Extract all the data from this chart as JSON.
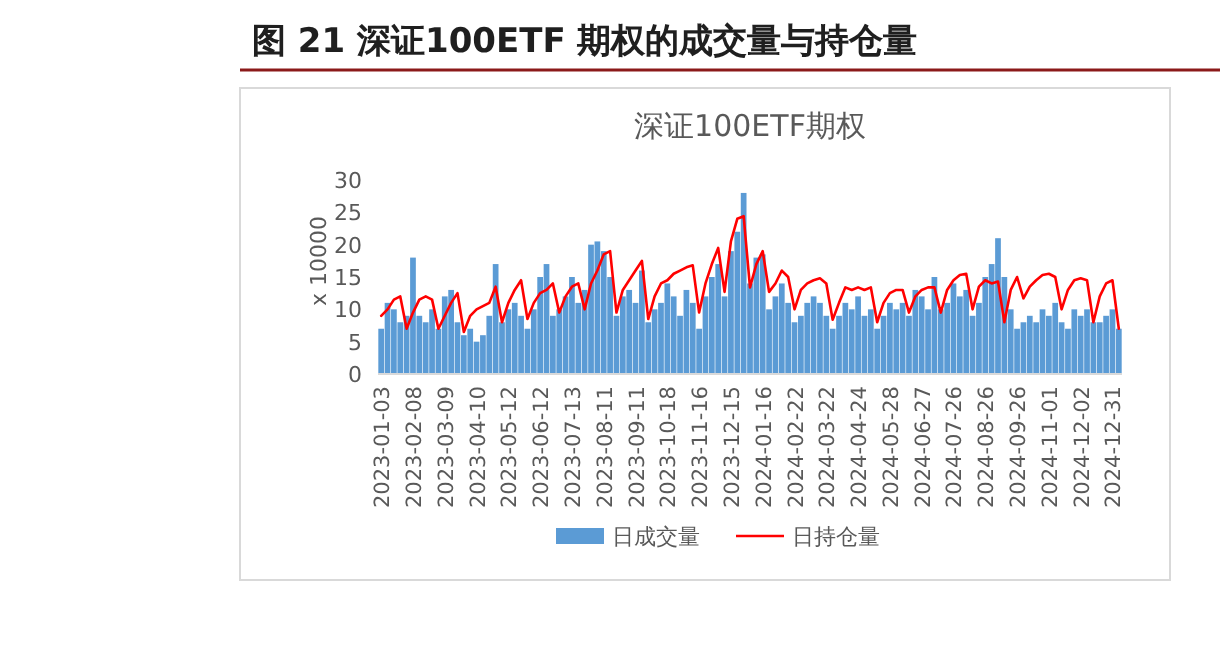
{
  "chart_data": {
    "type": "bar",
    "title": "图 21 深证100ETF 期权的成交量与持仓量",
    "subtitle": "深证100ETF期权",
    "ylabel": "x 10000",
    "categories": [
      "2023-01-03",
      null,
      null,
      null,
      null,
      "2023-02-08",
      null,
      null,
      null,
      null,
      "2023-03-09",
      null,
      null,
      null,
      null,
      "2023-04-10",
      null,
      null,
      null,
      null,
      "2023-05-12",
      null,
      null,
      null,
      null,
      "2023-06-12",
      null,
      null,
      null,
      null,
      "2023-07-13",
      null,
      null,
      null,
      null,
      "2023-08-11",
      null,
      null,
      null,
      null,
      "2023-09-11",
      null,
      null,
      null,
      null,
      "2023-10-18",
      null,
      null,
      null,
      null,
      "2023-11-16",
      null,
      null,
      null,
      null,
      "2023-12-15",
      null,
      null,
      null,
      null,
      "2024-01-16",
      null,
      null,
      null,
      null,
      "2024-02-22",
      null,
      null,
      null,
      null,
      "2024-03-22",
      null,
      null,
      null,
      null,
      "2024-04-24",
      null,
      null,
      null,
      null,
      "2024-05-28",
      null,
      null,
      null,
      null,
      "2024-06-27",
      null,
      null,
      null,
      null,
      "2024-07-26",
      null,
      null,
      null,
      null,
      "2024-08-26",
      null,
      null,
      null,
      null,
      "2024-09-26",
      null,
      null,
      null,
      null,
      "2024-11-01",
      null,
      null,
      null,
      null,
      "2024-12-02",
      null,
      null,
      null,
      null,
      "2024-12-31",
      null
    ],
    "series": [
      {
        "name": "日成交量",
        "type": "bar",
        "color": "#5b9bd5",
        "values": [
          7,
          11,
          10,
          8,
          9,
          18,
          9,
          8,
          10,
          7,
          12,
          13,
          8,
          6,
          7,
          5,
          6,
          9,
          17,
          8,
          10,
          11,
          9,
          7,
          10,
          15,
          17,
          9,
          10,
          12,
          15,
          11,
          13,
          20,
          20.5,
          19,
          15,
          9,
          12,
          13,
          11,
          16,
          8,
          10,
          11,
          14,
          12,
          9,
          13,
          11,
          7,
          12,
          15,
          17,
          12,
          19,
          22,
          28,
          14,
          18,
          18.5,
          10,
          12,
          14,
          11,
          8,
          9,
          11,
          12,
          11,
          9,
          7,
          9,
          11,
          10,
          12,
          9,
          10,
          7,
          9,
          11,
          10,
          11,
          9,
          13,
          12,
          10,
          15,
          10,
          11,
          14,
          12,
          13,
          9,
          11,
          15,
          17,
          21,
          15,
          10,
          7,
          8,
          9,
          8,
          10,
          9,
          11,
          8,
          7,
          10,
          9,
          10,
          8,
          8,
          9,
          10,
          7
        ]
      },
      {
        "name": "日持仓量",
        "type": "line",
        "color": "#ff0000",
        "values": [
          9,
          10,
          11.5,
          12,
          7,
          9.5,
          11.5,
          12,
          11.5,
          7,
          9,
          11,
          12.5,
          6.5,
          9,
          10,
          10.5,
          11,
          13.5,
          8,
          11,
          13,
          14.5,
          8.5,
          11,
          12.5,
          13,
          14,
          9.5,
          12,
          13.5,
          14,
          10,
          14,
          16,
          18.5,
          19,
          9.5,
          13,
          14.5,
          16,
          17.5,
          8.5,
          12,
          14,
          14.5,
          15.5,
          16,
          16.5,
          16.8,
          9.5,
          14,
          17,
          19.5,
          12.7,
          20.5,
          24,
          24.4,
          13.4,
          17,
          19,
          12.7,
          14,
          16,
          15,
          10,
          13,
          14,
          14.5,
          14.8,
          14,
          8.4,
          11,
          13.4,
          13,
          13.4,
          13,
          13.4,
          8,
          11,
          12.5,
          13,
          13,
          9.5,
          12,
          13,
          13.4,
          13.4,
          9.5,
          13,
          14.5,
          15.3,
          15.5,
          10,
          13.5,
          14.5,
          14,
          14.3,
          8,
          13,
          15,
          11.7,
          13.5,
          14.5,
          15.3,
          15.5,
          15,
          10,
          13,
          14.5,
          14.8,
          14.5,
          8,
          12,
          14,
          14.5,
          7
        ]
      }
    ],
    "ylim": [
      0,
      30
    ],
    "yticks": [
      0,
      5,
      10,
      15,
      20,
      25,
      30
    ],
    "legend": "bottom"
  }
}
